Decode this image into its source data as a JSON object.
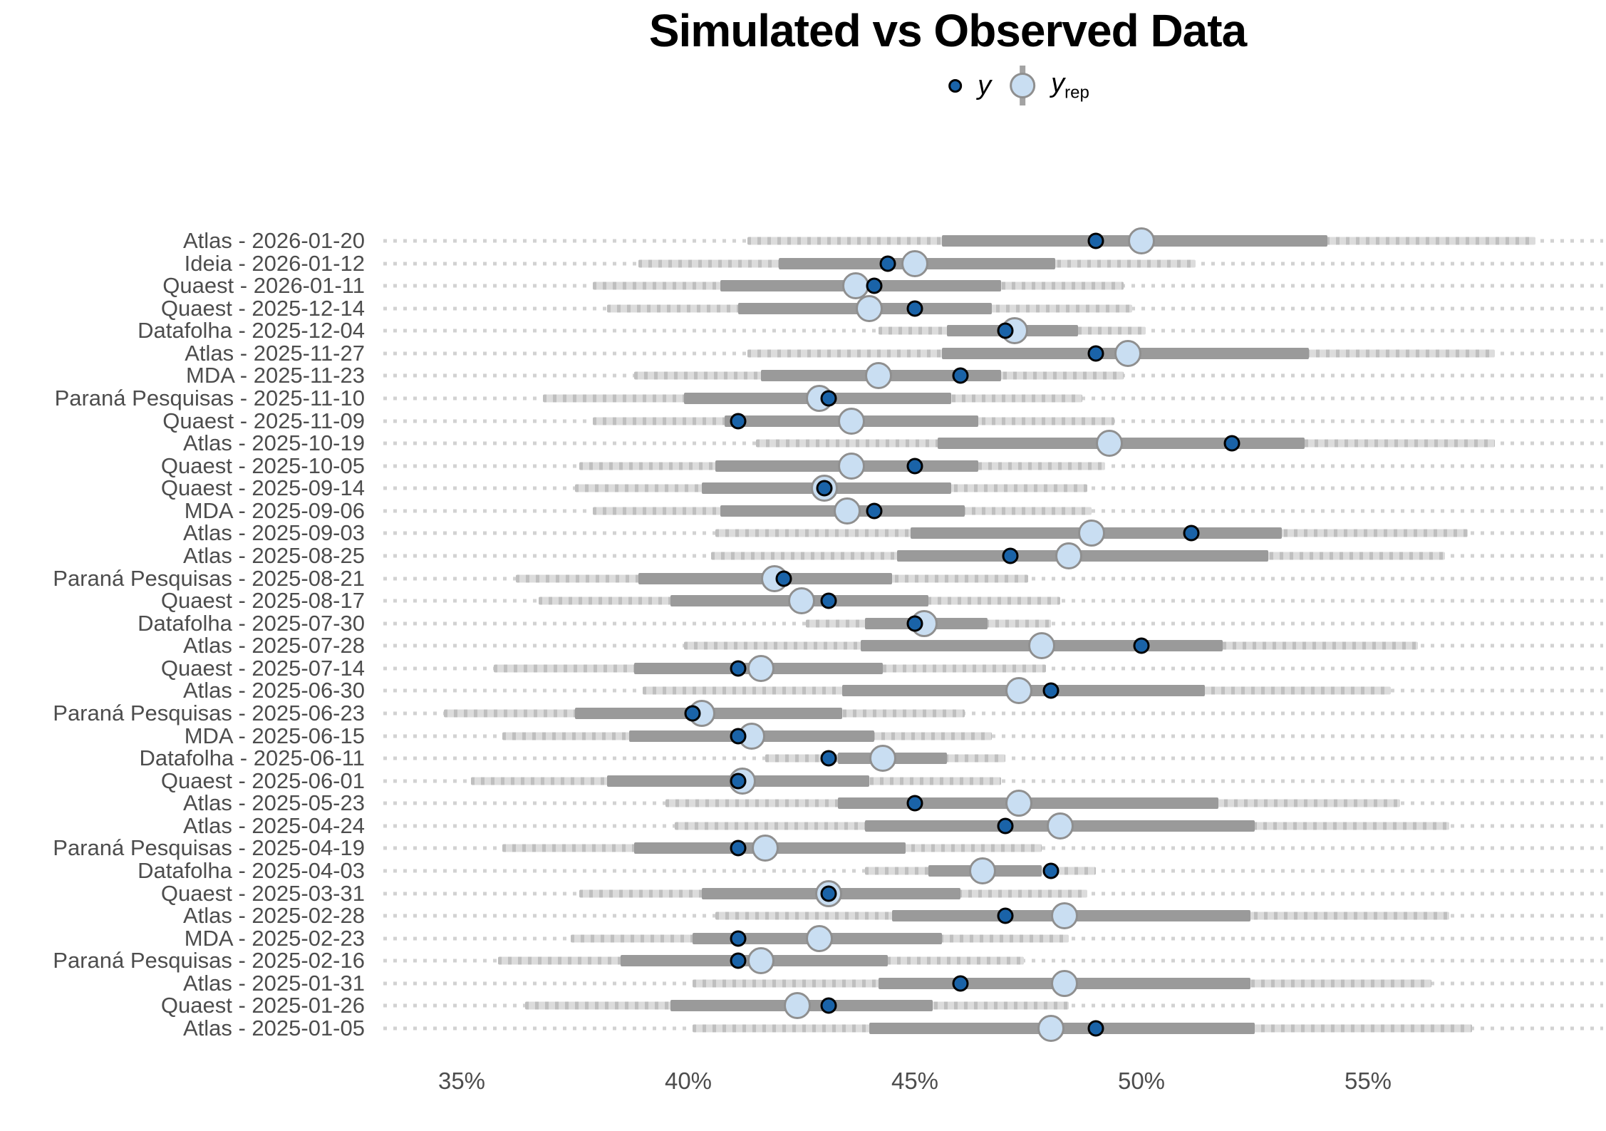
{
  "title": "Simulated vs Observed Data",
  "legend": {
    "y_label": "y",
    "yrep_base": "y",
    "yrep_sub": "rep"
  },
  "colors": {
    "observed_point_fill": "#1a63a8",
    "observed_point_border": "#000000",
    "yrep_point_fill": "#c9def2",
    "yrep_point_border": "#8f8f8f",
    "inner_interval": "#9a9a9a",
    "outer_interval": "#dcdcdc",
    "grid_dots": "#d2d2d2",
    "axis_text": "#4d4d4d",
    "title_text": "#000000"
  },
  "chart_data": {
    "type": "scatter",
    "subtype": "pointrange-intervals (posterior predictive check)",
    "title": "Simulated vs Observed Data",
    "xlabel": "",
    "ylabel": "",
    "x_unit": "percent",
    "x_ticks": [
      "35%",
      "40%",
      "45%",
      "50%",
      "55%"
    ],
    "x_tick_values": [
      35,
      40,
      45,
      50,
      55
    ],
    "xlim": [
      33.3,
      60.3
    ],
    "grid": "dotted horizontal per row",
    "legend_position": "top center",
    "series_legend": [
      "y",
      "y_rep"
    ],
    "rows": [
      {
        "label": "Atlas - 2026-01-20",
        "outer": [
          41.3,
          58.7
        ],
        "inner": [
          45.6,
          54.1
        ],
        "yrep": 50.0,
        "y": 49.0
      },
      {
        "label": "Ideia - 2026-01-12",
        "outer": [
          38.9,
          51.2
        ],
        "inner": [
          42.0,
          48.1
        ],
        "yrep": 45.0,
        "y": 44.4
      },
      {
        "label": "Quaest - 2026-01-11",
        "outer": [
          37.9,
          49.6
        ],
        "inner": [
          40.7,
          46.9
        ],
        "yrep": 43.7,
        "y": 44.1
      },
      {
        "label": "Quaest - 2025-12-14",
        "outer": [
          38.2,
          49.8
        ],
        "inner": [
          41.1,
          46.7
        ],
        "yrep": 44.0,
        "y": 45.0
      },
      {
        "label": "Datafolha - 2025-12-04",
        "outer": [
          44.2,
          50.1
        ],
        "inner": [
          45.7,
          48.6
        ],
        "yrep": 47.2,
        "y": 47.0
      },
      {
        "label": "Atlas - 2025-11-27",
        "outer": [
          41.3,
          57.8
        ],
        "inner": [
          45.6,
          53.7
        ],
        "yrep": 49.7,
        "y": 49.0
      },
      {
        "label": "MDA - 2025-11-23",
        "outer": [
          38.8,
          49.6
        ],
        "inner": [
          41.6,
          46.9
        ],
        "yrep": 44.2,
        "y": 46.0
      },
      {
        "label": "Paraná Pesquisas - 2025-11-10",
        "outer": [
          36.8,
          48.7
        ],
        "inner": [
          39.9,
          45.8
        ],
        "yrep": 42.9,
        "y": 43.1
      },
      {
        "label": "Quaest - 2025-11-09",
        "outer": [
          37.9,
          49.4
        ],
        "inner": [
          40.8,
          46.4
        ],
        "yrep": 43.6,
        "y": 41.1
      },
      {
        "label": "Atlas - 2025-10-19",
        "outer": [
          41.5,
          57.8
        ],
        "inner": [
          45.5,
          53.6
        ],
        "yrep": 49.3,
        "y": 52.0
      },
      {
        "label": "Quaest - 2025-10-05",
        "outer": [
          37.6,
          49.2
        ],
        "inner": [
          40.6,
          46.4
        ],
        "yrep": 43.6,
        "y": 45.0
      },
      {
        "label": "Quaest - 2025-09-14",
        "outer": [
          37.5,
          48.8
        ],
        "inner": [
          40.3,
          45.8
        ],
        "yrep": 43.0,
        "y": 43.0
      },
      {
        "label": "MDA - 2025-09-06",
        "outer": [
          37.9,
          48.9
        ],
        "inner": [
          40.7,
          46.1
        ],
        "yrep": 43.5,
        "y": 44.1
      },
      {
        "label": "Atlas - 2025-09-03",
        "outer": [
          40.6,
          57.2
        ],
        "inner": [
          44.9,
          53.1
        ],
        "yrep": 48.9,
        "y": 51.1
      },
      {
        "label": "Atlas - 2025-08-25",
        "outer": [
          40.5,
          56.7
        ],
        "inner": [
          44.6,
          52.8
        ],
        "yrep": 48.4,
        "y": 47.1
      },
      {
        "label": "Paraná Pesquisas - 2025-08-21",
        "outer": [
          36.2,
          47.5
        ],
        "inner": [
          38.9,
          44.5
        ],
        "yrep": 41.9,
        "y": 42.1
      },
      {
        "label": "Quaest - 2025-08-17",
        "outer": [
          36.7,
          48.2
        ],
        "inner": [
          39.6,
          45.3
        ],
        "yrep": 42.5,
        "y": 43.1
      },
      {
        "label": "Datafolha - 2025-07-30",
        "outer": [
          42.6,
          48.0
        ],
        "inner": [
          43.9,
          46.6
        ],
        "yrep": 45.2,
        "y": 45.0
      },
      {
        "label": "Atlas - 2025-07-28",
        "outer": [
          39.9,
          56.1
        ],
        "inner": [
          43.8,
          51.8
        ],
        "yrep": 47.8,
        "y": 50.0
      },
      {
        "label": "Quaest - 2025-07-14",
        "outer": [
          35.7,
          47.9
        ],
        "inner": [
          38.8,
          44.3
        ],
        "yrep": 41.6,
        "y": 41.1
      },
      {
        "label": "Atlas - 2025-06-30",
        "outer": [
          39.0,
          55.5
        ],
        "inner": [
          43.4,
          51.4
        ],
        "yrep": 47.3,
        "y": 48.0
      },
      {
        "label": "Paraná Pesquisas - 2025-06-23",
        "outer": [
          34.6,
          46.1
        ],
        "inner": [
          37.5,
          43.4
        ],
        "yrep": 40.3,
        "y": 40.1
      },
      {
        "label": "MDA - 2025-06-15",
        "outer": [
          35.9,
          46.7
        ],
        "inner": [
          38.7,
          44.1
        ],
        "yrep": 41.4,
        "y": 41.1
      },
      {
        "label": "Datafolha - 2025-06-11",
        "outer": [
          41.7,
          47.0
        ],
        "inner": [
          43.3,
          45.7
        ],
        "yrep": 44.3,
        "y": 43.1
      },
      {
        "label": "Quaest - 2025-06-01",
        "outer": [
          35.2,
          46.9
        ],
        "inner": [
          38.2,
          44.0
        ],
        "yrep": 41.2,
        "y": 41.1
      },
      {
        "label": "Atlas - 2025-05-23",
        "outer": [
          39.5,
          55.7
        ],
        "inner": [
          43.3,
          51.7
        ],
        "yrep": 47.3,
        "y": 45.0
      },
      {
        "label": "Atlas - 2025-04-24",
        "outer": [
          39.7,
          56.8
        ],
        "inner": [
          43.9,
          52.5
        ],
        "yrep": 48.2,
        "y": 47.0
      },
      {
        "label": "Paraná Pesquisas - 2025-04-19",
        "outer": [
          35.9,
          47.8
        ],
        "inner": [
          38.8,
          44.8
        ],
        "yrep": 41.7,
        "y": 41.1
      },
      {
        "label": "Datafolha - 2025-04-03",
        "outer": [
          43.9,
          49.0
        ],
        "inner": [
          45.3,
          47.8
        ],
        "yrep": 46.5,
        "y": 48.0
      },
      {
        "label": "Quaest - 2025-03-31",
        "outer": [
          37.6,
          48.8
        ],
        "inner": [
          40.3,
          46.0
        ],
        "yrep": 43.1,
        "y": 43.1
      },
      {
        "label": "Atlas - 2025-02-28",
        "outer": [
          40.6,
          56.8
        ],
        "inner": [
          44.5,
          52.4
        ],
        "yrep": 48.3,
        "y": 47.0
      },
      {
        "label": "MDA - 2025-02-23",
        "outer": [
          37.4,
          48.4
        ],
        "inner": [
          40.1,
          45.6
        ],
        "yrep": 42.9,
        "y": 41.1
      },
      {
        "label": "Paraná Pesquisas - 2025-02-16",
        "outer": [
          35.8,
          47.4
        ],
        "inner": [
          38.5,
          44.4
        ],
        "yrep": 41.6,
        "y": 41.1
      },
      {
        "label": "Atlas - 2025-01-31",
        "outer": [
          40.1,
          56.4
        ],
        "inner": [
          44.2,
          52.4
        ],
        "yrep": 48.3,
        "y": 46.0
      },
      {
        "label": "Quaest - 2025-01-26",
        "outer": [
          36.4,
          48.4
        ],
        "inner": [
          39.6,
          45.4
        ],
        "yrep": 42.4,
        "y": 43.1
      },
      {
        "label": "Atlas - 2025-01-05",
        "outer": [
          40.1,
          57.3
        ],
        "inner": [
          44.0,
          52.5
        ],
        "yrep": 48.0,
        "y": 49.0
      }
    ]
  }
}
